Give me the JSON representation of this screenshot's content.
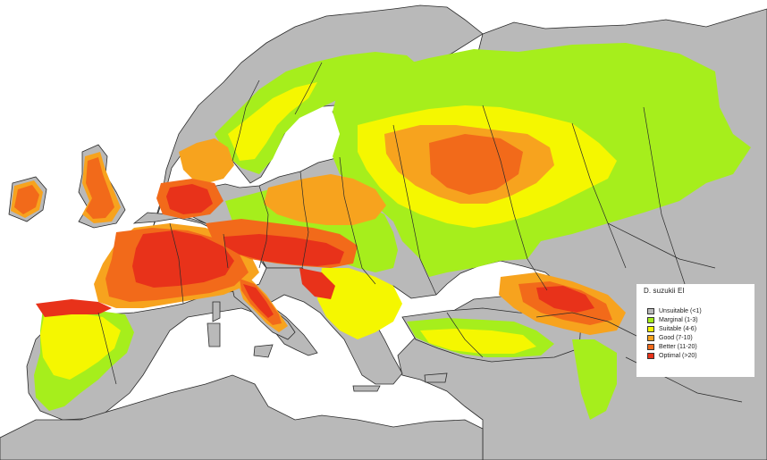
{
  "map": {
    "land_color": "#b9b9b9",
    "sea_color": "#ffffff",
    "border_color": "#2a2a2a",
    "class_colors": {
      "marginal": "#a6ee1c",
      "suitable": "#f5f700",
      "good": "#f7a31e",
      "better": "#f26a1a",
      "optimal": "#e8321a"
    }
  },
  "legend": {
    "title": "D. suzukii EI",
    "items": [
      {
        "label": "Unsuitable (<1)",
        "color": "#b9b9b9"
      },
      {
        "label": "Marginal (1-3)",
        "color": "#a6ee1c"
      },
      {
        "label": "Suitable (4-6)",
        "color": "#f5f700"
      },
      {
        "label": "Good (7-10)",
        "color": "#f7a31e"
      },
      {
        "label": "Better (11-20)",
        "color": "#f26a1a"
      },
      {
        "label": "Optimal (>20)",
        "color": "#e8321a"
      }
    ]
  }
}
